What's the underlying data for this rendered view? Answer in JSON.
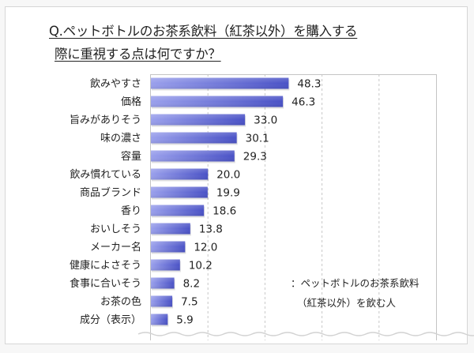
{
  "chart_data": {
    "type": "bar",
    "orientation": "horizontal",
    "title": "Q.ペットボトルのお茶系飲料（紅茶以外）を購入する際に重視する点は何ですか？",
    "title_lines": [
      "Q.ペットボトルのお茶系飲料（紅茶以外）を購入する",
      "際に重視する点は何ですか？"
    ],
    "categories": [
      "飲みやすさ",
      "価格",
      "旨みがありそう",
      "味の濃さ",
      "容量",
      "飲み慣れている",
      "商品ブランド",
      "香り",
      "おいしそう",
      "メーカー名",
      "健康によさそう",
      "食事に合いそう",
      "お茶の色",
      "成分（表示）"
    ],
    "values": [
      48.3,
      46.3,
      33.0,
      30.1,
      29.3,
      20.0,
      19.9,
      18.6,
      13.8,
      12.0,
      10.2,
      8.2,
      7.5,
      5.9
    ],
    "value_labels": [
      "48.3",
      "46.3",
      "33.0",
      "30.1",
      "29.3",
      "20.0",
      "19.9",
      "18.6",
      "13.8",
      "12.0",
      "10.2",
      "8.2",
      "7.5",
      "5.9"
    ],
    "xlim": [
      0,
      100
    ],
    "grid_step": 20,
    "grid": true,
    "xlabel": "",
    "ylabel": "",
    "note_lines": [
      "：ペットボトルのお茶系飲料",
      "（紅茶以外）を飲む人"
    ],
    "note_placement": "bottom-right",
    "colors": {
      "bar_light": "#9aa0ec",
      "bar_dark": "#4a52c6",
      "grid": "#c8c8c8",
      "plot_border": "#c4c4c4"
    }
  }
}
